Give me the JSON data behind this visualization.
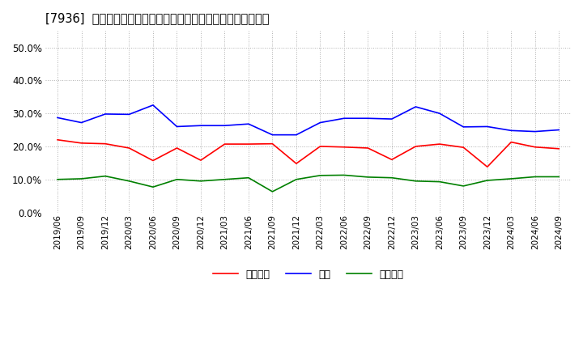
{
  "title": "[7936]  売上債権、在庫、買入債務の総資産に対する比率の推移",
  "ylim": [
    0.0,
    0.55
  ],
  "yticks": [
    0.0,
    0.1,
    0.2,
    0.3,
    0.4,
    0.5
  ],
  "dates": [
    "2019/06",
    "2019/09",
    "2019/12",
    "2020/03",
    "2020/06",
    "2020/09",
    "2020/12",
    "2021/03",
    "2021/06",
    "2021/09",
    "2021/12",
    "2022/03",
    "2022/06",
    "2022/09",
    "2022/12",
    "2023/03",
    "2023/06",
    "2023/09",
    "2023/12",
    "2024/03",
    "2024/06",
    "2024/09"
  ],
  "urikake": [
    0.22,
    0.21,
    0.208,
    0.195,
    0.157,
    0.195,
    0.158,
    0.207,
    0.207,
    0.208,
    0.148,
    0.2,
    0.198,
    0.195,
    0.16,
    0.2,
    0.207,
    0.197,
    0.138,
    0.213,
    0.198,
    0.193
  ],
  "zaiko": [
    0.287,
    0.272,
    0.298,
    0.297,
    0.325,
    0.26,
    0.263,
    0.263,
    0.268,
    0.235,
    0.235,
    0.272,
    0.285,
    0.285,
    0.283,
    0.32,
    0.3,
    0.259,
    0.26,
    0.248,
    0.245,
    0.25
  ],
  "kainyu": [
    0.1,
    0.102,
    0.11,
    0.095,
    0.077,
    0.1,
    0.095,
    0.1,
    0.105,
    0.063,
    0.1,
    0.112,
    0.113,
    0.107,
    0.105,
    0.095,
    0.093,
    0.08,
    0.097,
    0.102,
    0.108,
    0.108
  ],
  "urikake_color": "#ff0000",
  "zaiko_color": "#0000ff",
  "kainyu_color": "#008000",
  "legend_labels": [
    "売上債権",
    "在庫",
    "買入債務"
  ],
  "background_color": "#ffffff",
  "grid_color": "#b0b0b0",
  "title_fontsize": 10.5
}
